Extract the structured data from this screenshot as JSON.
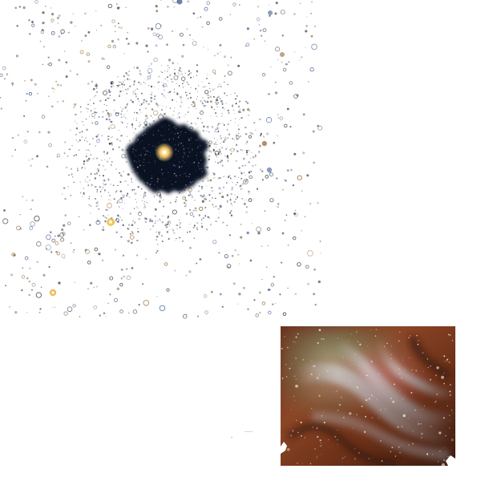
{
  "scene": {
    "background": "#ffffff",
    "cluster": {
      "core_color": "#0e1626",
      "core_star_color": "#fff3c2",
      "halo_star_colors": [
        "#1b2130",
        "#2a3550",
        "#6b5a3e",
        "#3a4f7a",
        "#4b4b4b"
      ]
    },
    "field_star_colors": {
      "outline_dark": "#2b2b2b",
      "outline_blue": "#2f4c8a",
      "outline_amber": "#8a5a1c",
      "bright_yellow": "#f2c14b"
    },
    "nebula_inset": {
      "palette": [
        "#5a2614",
        "#8e4a28",
        "#b46a3a",
        "#7a8f72",
        "#9fb7c4",
        "#d8e1e6",
        "#c8716a",
        "#3a1a10"
      ]
    }
  }
}
